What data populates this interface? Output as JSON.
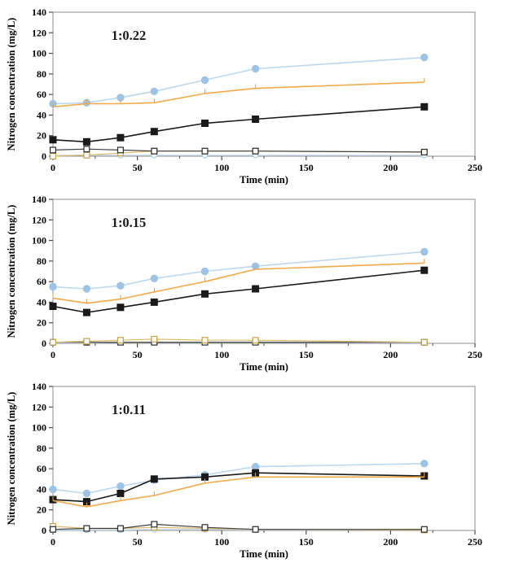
{
  "figure": {
    "description": "Three stacked line charts of nitrogen concentration vs time for ratios 1:0.22, 1:0.15, 1:0.11"
  },
  "colors": {
    "blue_marker": "#9DC3E6",
    "blue_line": "#BDD7EE",
    "orange_marker": "#F09E36",
    "orange_line": "#F5A947",
    "black": "#1A1A1A",
    "gold_open": "#C9A23F",
    "gold_open_line": "#DCB868",
    "axis_border": "#8C8C8C",
    "tick_color": "#4D4D4D"
  },
  "chart_data": [
    {
      "type": "line",
      "label": "1:0.22",
      "xlabel": "Time (min)",
      "ylabel": "Nitrogen concentration (mg/L)",
      "x": [
        0,
        20,
        40,
        60,
        90,
        120,
        220
      ],
      "xlim": [
        0,
        250
      ],
      "ylim": [
        0,
        140
      ],
      "xtick": 50,
      "ytick": 20,
      "xminor": 25,
      "legend": "none",
      "series": [
        {
          "name": "open-circle-blue",
          "marker": "circle",
          "fill": "open",
          "color": "#A8CBE8",
          "line_color": "#C4DCF0",
          "values": [
            1,
            1,
            1,
            1,
            1,
            1,
            1
          ]
        },
        {
          "name": "open-square-gold",
          "marker": "square",
          "fill": "open",
          "color": "#C9A23F",
          "line_color": "#DCB868",
          "values": [
            0,
            1,
            3,
            5,
            5,
            5,
            4
          ]
        },
        {
          "name": "open-square-black",
          "marker": "square",
          "fill": "open",
          "color": "#2B2B2B",
          "line_color": "#3D3D3D",
          "values": [
            6,
            7,
            6,
            5,
            5,
            5,
            4
          ]
        },
        {
          "name": "filled-circle-blue",
          "marker": "circle",
          "fill": "solid",
          "color": "#9DC3E6",
          "line_color": "#BDD7EE",
          "values": [
            51,
            52,
            57,
            63,
            74,
            85,
            96
          ]
        },
        {
          "name": "filled-square-black",
          "marker": "square",
          "fill": "solid",
          "color": "#1A1A1A",
          "line_color": "#1A1A1A",
          "values": [
            16,
            14,
            18,
            24,
            32,
            36,
            48
          ]
        },
        {
          "name": "filled-triangle-orange",
          "marker": "triangle",
          "fill": "solid",
          "color": "#F09E36",
          "line_color": "#F5A947",
          "values": [
            48,
            51,
            51,
            52,
            61,
            66,
            72
          ]
        }
      ]
    },
    {
      "type": "line",
      "label": "1:0.15",
      "xlabel": "Time (min)",
      "ylabel": "Nitrogen concentration (mg/L)",
      "x": [
        0,
        20,
        40,
        60,
        90,
        120,
        220
      ],
      "xlim": [
        0,
        250
      ],
      "ylim": [
        0,
        140
      ],
      "xtick": 50,
      "ytick": 20,
      "xminor": 25,
      "legend": "none",
      "series": [
        {
          "name": "open-circle-blue",
          "marker": "circle",
          "fill": "open",
          "color": "#A8CBE8",
          "line_color": "#C4DCF0",
          "values": [
            0.5,
            0.5,
            1,
            1,
            1,
            1,
            0.5
          ]
        },
        {
          "name": "open-square-black",
          "marker": "square",
          "fill": "open",
          "color": "#2B2B2B",
          "line_color": "#3D3D3D",
          "values": [
            1,
            1,
            1,
            1,
            1,
            1,
            1
          ]
        },
        {
          "name": "open-square-gold",
          "marker": "square",
          "fill": "open",
          "color": "#C9A23F",
          "line_color": "#DCB868",
          "values": [
            1,
            2,
            3,
            4,
            3,
            3,
            1
          ]
        },
        {
          "name": "filled-circle-blue",
          "marker": "circle",
          "fill": "solid",
          "color": "#9DC3E6",
          "line_color": "#BDD7EE",
          "values": [
            55,
            53,
            56,
            63,
            70,
            75,
            89
          ]
        },
        {
          "name": "filled-square-black",
          "marker": "square",
          "fill": "solid",
          "color": "#1A1A1A",
          "line_color": "#1A1A1A",
          "values": [
            36,
            30,
            35,
            40,
            48,
            53,
            71
          ]
        },
        {
          "name": "filled-triangle-orange",
          "marker": "triangle",
          "fill": "solid",
          "color": "#F09E36",
          "line_color": "#F5A947",
          "values": [
            44,
            39,
            43,
            50,
            60,
            72,
            78
          ]
        }
      ]
    },
    {
      "type": "line",
      "label": "1:0.11",
      "xlabel": "Time (min)",
      "ylabel": "Nitrogen concentration (mg/L)",
      "x": [
        0,
        20,
        40,
        60,
        90,
        120,
        220
      ],
      "xlim": [
        0,
        250
      ],
      "ylim": [
        0,
        140
      ],
      "xtick": 50,
      "ytick": 20,
      "xminor": 25,
      "legend": "none",
      "series": [
        {
          "name": "open-circle-blue",
          "marker": "circle",
          "fill": "open",
          "color": "#A8CBE8",
          "line_color": "#C4DCF0",
          "values": [
            0.5,
            0.5,
            0.5,
            1,
            1,
            0.5,
            0.5
          ]
        },
        {
          "name": "open-square-gold",
          "marker": "square",
          "fill": "open",
          "color": "#C9A23F",
          "line_color": "#DCB868",
          "values": [
            4,
            2,
            2,
            3,
            2,
            1,
            0.5
          ]
        },
        {
          "name": "open-square-black",
          "marker": "square",
          "fill": "open",
          "color": "#2B2B2B",
          "line_color": "#3D3D3D",
          "values": [
            1,
            2,
            2,
            6,
            3,
            1,
            1
          ]
        },
        {
          "name": "filled-circle-blue",
          "marker": "circle",
          "fill": "solid",
          "color": "#9DC3E6",
          "line_color": "#BDD7EE",
          "values": [
            40,
            36,
            43,
            49,
            54,
            62,
            65
          ]
        },
        {
          "name": "filled-square-black",
          "marker": "square",
          "fill": "solid",
          "color": "#1A1A1A",
          "line_color": "#1A1A1A",
          "values": [
            30,
            28,
            36,
            50,
            52,
            56,
            53
          ]
        },
        {
          "name": "filled-triangle-orange",
          "marker": "triangle",
          "fill": "solid",
          "color": "#F09E36",
          "line_color": "#F5A947",
          "values": [
            29,
            23,
            29,
            34,
            46,
            52,
            52
          ]
        }
      ]
    }
  ]
}
